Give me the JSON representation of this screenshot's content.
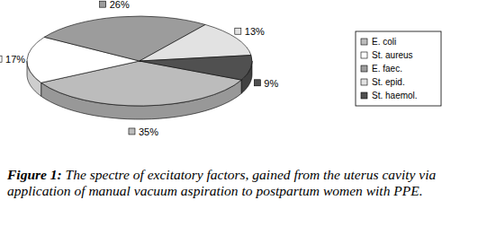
{
  "chart_data": {
    "type": "pie",
    "categories": [
      "E. coli",
      "St. aureus",
      "E. faec.",
      "St. epid.",
      "St. haemol."
    ],
    "values": [
      35,
      17,
      26,
      13,
      9
    ],
    "value_labels": [
      "35%",
      "17%",
      "26%",
      "13%",
      "9%"
    ],
    "colors": [
      "#bcbcbc",
      "#ffffff",
      "#9c9c9c",
      "#e2e2e2",
      "#505050"
    ],
    "data_labels": true,
    "legend": "right",
    "caption_label": "Figure 1:",
    "caption": "The spectre of excitatory factors, gained from the uterus cavity via application of manual vacuum aspiration to postpartum women with PPE."
  }
}
